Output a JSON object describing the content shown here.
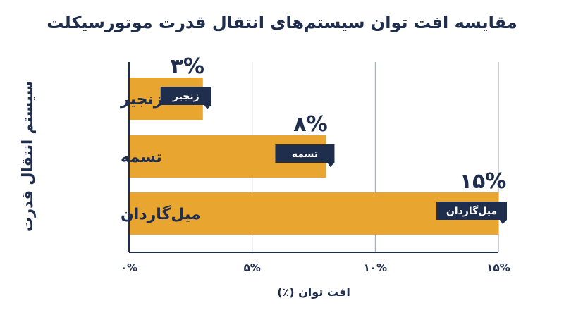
{
  "chart_data": {
    "type": "bar",
    "orientation": "horizontal",
    "title": "مقایسه افت توان سیستم‌های انتقال قدرت موتورسیکلت",
    "xlabel": "افت توان (٪)",
    "ylabel": "سیستم انتقال قدرت",
    "categories": [
      "زنجیر",
      "تسمه",
      "میل‌گاردان"
    ],
    "values": [
      3,
      8,
      15
    ],
    "value_labels": [
      "۳%",
      "۸%",
      "۱۵%"
    ],
    "tick_values": [
      0,
      5,
      10,
      15
    ],
    "tick_labels": [
      "۰%",
      "۵%",
      "۱۰%",
      "۱۵%"
    ],
    "xlim": [
      0,
      15
    ],
    "grid": "vertical",
    "bar_color": "#e8a530",
    "tag_color": "#1f2e4d",
    "text_color": "#1f2e4d"
  }
}
